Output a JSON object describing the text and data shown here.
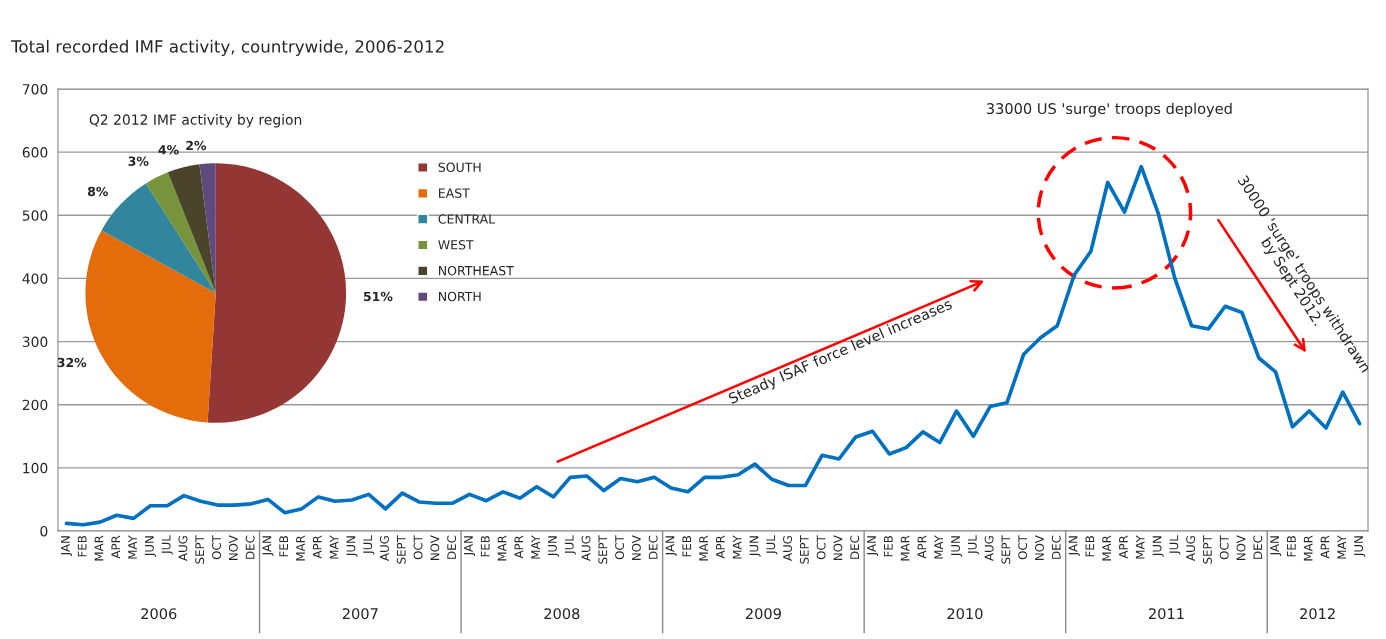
{
  "chart_data": [
    {
      "type": "line",
      "title": "Total recorded IMF activity, countrywide, 2006-2012",
      "categories": [
        "JAN",
        "FEB",
        "MAR",
        "APR",
        "MAY",
        "JUN",
        "JUL",
        "AUG",
        "SEPT",
        "OCT",
        "NOV",
        "DEC",
        "JAN",
        "FEB",
        "MAR",
        "APR",
        "MAY",
        "JUN",
        "JUL",
        "AUG",
        "SEPT",
        "OCT",
        "NOV",
        "DEC",
        "JAN",
        "FEB",
        "MAR",
        "APR",
        "MAY",
        "JUN",
        "JUL",
        "AUG",
        "SEPT",
        "OCT",
        "NOV",
        "DEC",
        "JAN",
        "FEB",
        "MAR",
        "APR",
        "MAY",
        "JUN",
        "JUL",
        "AUG",
        "SEPT",
        "OCT",
        "NOV",
        "DEC",
        "JAN",
        "FEB",
        "MAR",
        "APR",
        "MAY",
        "JUN",
        "JUL",
        "AUG",
        "SEPT",
        "OCT",
        "NOV",
        "DEC",
        "JAN",
        "FEB",
        "MAR",
        "APR",
        "MAY",
        "JUN",
        "JUL",
        "AUG",
        "SEPT",
        "OCT",
        "NOV",
        "DEC",
        "JAN",
        "FEB",
        "MAR",
        "APR",
        "MAY",
        "JUN"
      ],
      "series": [
        {
          "color": "#0070c0",
          "values": [
            12,
            10,
            14,
            25,
            20,
            40,
            40,
            56,
            47,
            41,
            41,
            43,
            50,
            29,
            35,
            54,
            47,
            49,
            58,
            35,
            60,
            46,
            44,
            44,
            58,
            48,
            62,
            52,
            70,
            54,
            85,
            87,
            64,
            83,
            78,
            85,
            68,
            62,
            85,
            85,
            89,
            106,
            82,
            72,
            72,
            120,
            114,
            149,
            158,
            122,
            132,
            157,
            140,
            190,
            150,
            197,
            203,
            280,
            306,
            325,
            405,
            443,
            552,
            505,
            577,
            504,
            400,
            325,
            320,
            356,
            346,
            274,
            252,
            165,
            190,
            163,
            220,
            170
          ]
        }
      ],
      "ylim": [
        0,
        700
      ],
      "yticks": [
        0,
        100,
        200,
        300,
        400,
        500,
        600,
        700
      ],
      "grid": "y",
      "legend": false,
      "marker": "none",
      "line_style": "solid",
      "annotations": [
        "2006",
        "2007",
        "2008",
        "2009",
        "2010",
        "2011",
        "2012",
        "33000 US 'surge' troops deployed",
        "Steady ISAF force level increases",
        "30000 'surge' troops withdrawn\nby Sept 2012."
      ]
    },
    {
      "type": "pie",
      "title": "Q2 2012 IMF activity by region",
      "categories": [
        "SOUTH",
        "EAST",
        "CENTRAL",
        "WEST",
        "NORTHEAST",
        "NORTH"
      ],
      "values": [
        51,
        32,
        8,
        3,
        4,
        2
      ],
      "value_labels": [
        "51%",
        "32%",
        "8%",
        "3%",
        "4%",
        "2%"
      ],
      "colors": [
        "#943634",
        "#e46c0a",
        "#31859c",
        "#77933c",
        "#4a452a",
        "#604a7b"
      ],
      "legend": "right"
    }
  ]
}
